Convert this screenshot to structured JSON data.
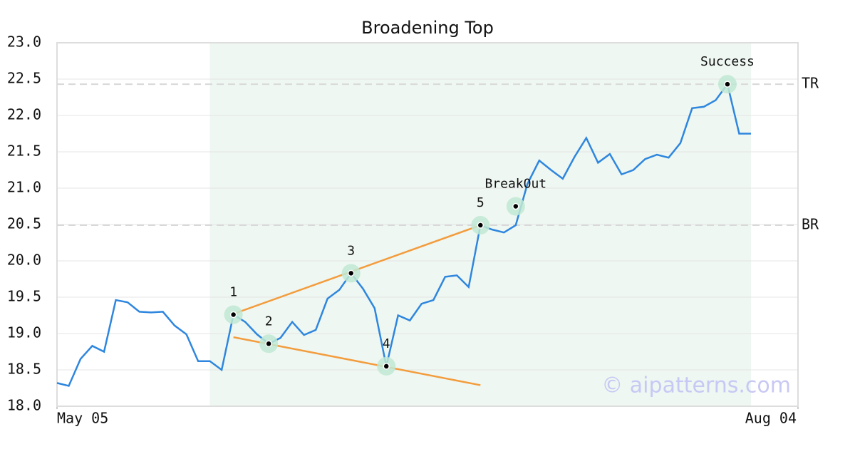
{
  "chart_data": {
    "type": "line",
    "title": "Broadening Top",
    "x": [
      0,
      1,
      2,
      3,
      4,
      5,
      6,
      7,
      8,
      9,
      10,
      11,
      12,
      13,
      14,
      15,
      16,
      17,
      18,
      19,
      20,
      21,
      22,
      23,
      24,
      25,
      26,
      27,
      28,
      29,
      30,
      31,
      32,
      33,
      34,
      35,
      36,
      37,
      38,
      39,
      40,
      41,
      42,
      43,
      44,
      45,
      46,
      47,
      48,
      49,
      50,
      51,
      52,
      53,
      54,
      55,
      56,
      57,
      58,
      59
    ],
    "series": [
      {
        "color": "#2e86de",
        "values": [
          18.32,
          18.28,
          18.65,
          18.83,
          18.75,
          19.46,
          19.43,
          19.3,
          19.29,
          19.3,
          19.11,
          18.99,
          18.62,
          18.62,
          18.5,
          19.26,
          19.16,
          18.99,
          18.86,
          18.94,
          19.16,
          18.98,
          19.05,
          19.48,
          19.6,
          19.83,
          19.62,
          19.35,
          18.55,
          19.25,
          19.18,
          19.41,
          19.46,
          19.78,
          19.8,
          19.64,
          20.49,
          20.43,
          20.39,
          20.49,
          21.06,
          21.38,
          21.25,
          21.13,
          21.43,
          21.69,
          21.35,
          21.47,
          21.19,
          21.25,
          21.4,
          21.46,
          21.42,
          21.62,
          22.1,
          22.12,
          22.21,
          22.43,
          21.75,
          21.75
        ]
      }
    ],
    "xlim": [
      0,
      63
    ],
    "xticks": [
      {
        "value": 0,
        "label": "May 05"
      },
      {
        "value": 63,
        "label": "Aug 04"
      }
    ],
    "ylim": [
      18,
      23
    ],
    "yticks": [
      {
        "value": 18,
        "label": "18.0"
      },
      18.5,
      {
        "value": 19,
        "label": "19.0"
      },
      19.5,
      {
        "value": 20,
        "label": "20.0"
      },
      20.5,
      {
        "value": 21,
        "label": "21.0"
      },
      21.5,
      {
        "value": 22,
        "label": "22.0"
      },
      22.5,
      {
        "value": 23,
        "label": "23.0"
      }
    ],
    "grid": true,
    "pattern_range": [
      13,
      59
    ],
    "levels": [
      {
        "label": "TR",
        "value": 22.43
      },
      {
        "label": "BR",
        "value": 20.49
      }
    ],
    "trend_lines": [
      {
        "x": [
          15,
          36
        ],
        "values": [
          19.27,
          20.49
        ]
      },
      {
        "x": [
          15,
          36
        ],
        "values": [
          18.95,
          18.29
        ]
      }
    ],
    "points": [
      {
        "label": "1",
        "x": 15,
        "value": 19.26
      },
      {
        "label": "2",
        "x": 18,
        "value": 18.86
      },
      {
        "label": "3",
        "x": 25,
        "value": 19.83
      },
      {
        "label": "4",
        "x": 28,
        "value": 18.55
      },
      {
        "label": "5",
        "x": 36,
        "value": 20.49
      },
      {
        "label": "BreakOut",
        "x": 39,
        "value": 20.75
      },
      {
        "label": "Success",
        "x": 57,
        "value": 22.43
      }
    ],
    "watermark": "© aipatterns.com"
  }
}
